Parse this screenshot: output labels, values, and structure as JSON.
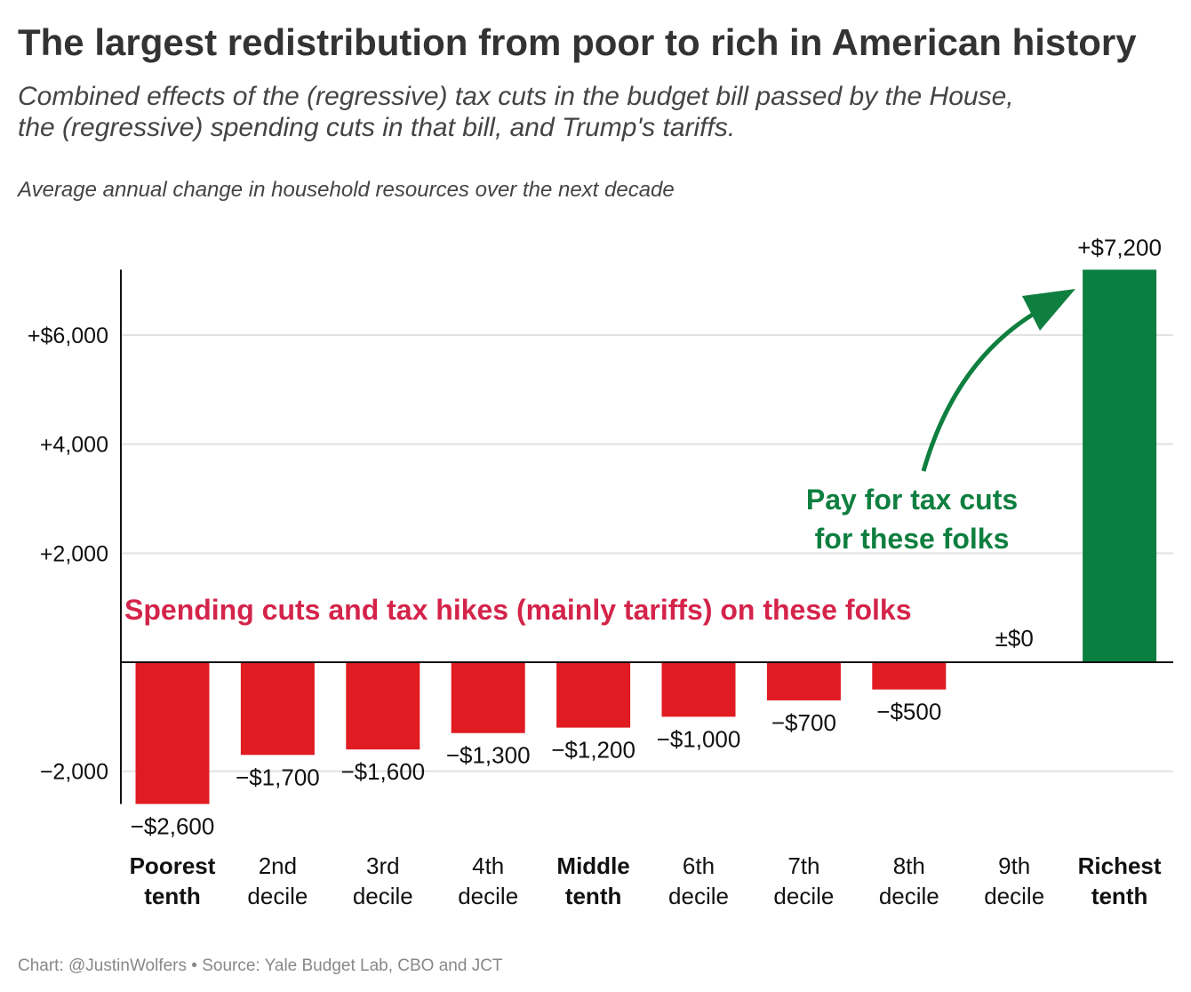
{
  "chart_data": {
    "type": "bar",
    "title": "The largest redistribution from poor to rich in American history",
    "subtitle": [
      "Combined effects of the (regressive) tax cuts in the budget bill passed by the House,",
      "the (regressive) spending cuts in that bill, and Trump's tariffs."
    ],
    "ylabel": "Average annual change in household resources over the next decade",
    "categories": [
      [
        "Poorest",
        "tenth"
      ],
      [
        "2nd",
        "decile"
      ],
      [
        "3rd",
        "decile"
      ],
      [
        "4th",
        "decile"
      ],
      [
        "Middle",
        "tenth"
      ],
      [
        "6th",
        "decile"
      ],
      [
        "7th",
        "decile"
      ],
      [
        "8th",
        "decile"
      ],
      [
        "9th",
        "decile"
      ],
      [
        "Richest",
        "tenth"
      ]
    ],
    "bold_categories": [
      0,
      4,
      9
    ],
    "values": [
      -2600,
      -1700,
      -1600,
      -1300,
      -1200,
      -1000,
      -700,
      -500,
      0,
      7200
    ],
    "value_labels": [
      "−$2,600",
      "−$1,700",
      "−$1,600",
      "−$1,300",
      "−$1,200",
      "−$1,000",
      "−$700",
      "−$500",
      "±$0",
      "+$7,200"
    ],
    "ylim": [
      -2600,
      7200
    ],
    "yticks": [
      {
        "value": 6000,
        "label": "+$6,000"
      },
      {
        "value": 4000,
        "label": "+4,000"
      },
      {
        "value": 2000,
        "label": "+2,000"
      },
      {
        "value": -2000,
        "label": "−2,000"
      }
    ],
    "grid": true,
    "colors": {
      "negative": "#e01b22",
      "positive": "#0b7f40",
      "annotation_red": "#d4244a",
      "annotation_green": "#0f7f40"
    },
    "annotations": {
      "red": "Spending cuts and tax hikes (mainly tariffs) on these folks",
      "green": [
        "Pay for tax cuts",
        "for these folks"
      ]
    },
    "footer": "Chart: @JustinWolfers • Source: Yale Budget Lab, CBO and JCT"
  }
}
